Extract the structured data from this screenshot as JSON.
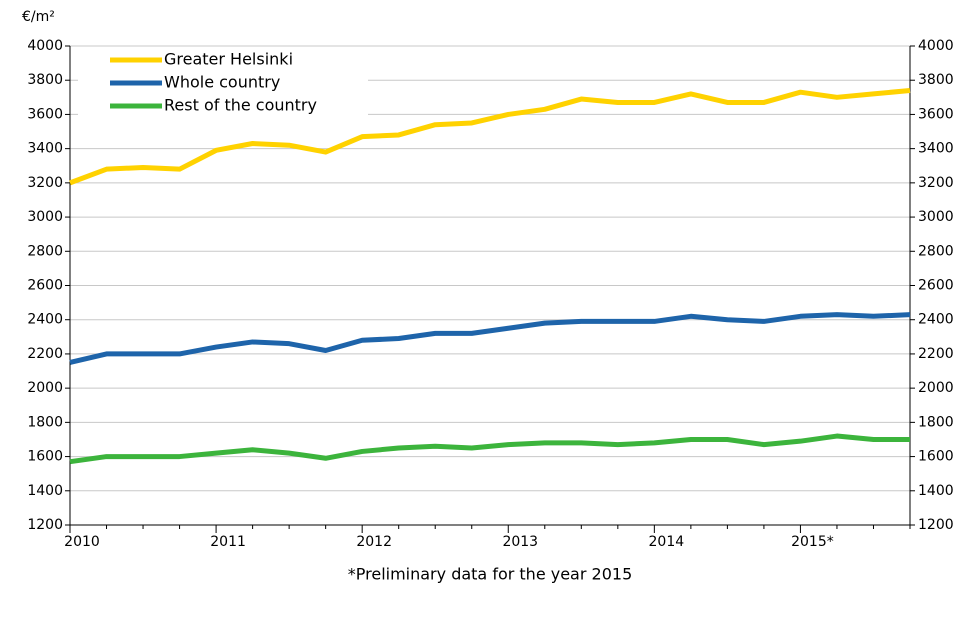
{
  "chart_data": {
    "type": "line",
    "unit_label": "€/m²",
    "footnote": "*Preliminary data for the year 2015",
    "categories": [
      "2010",
      null,
      null,
      null,
      "2011",
      null,
      null,
      null,
      "2012",
      null,
      null,
      null,
      "2013",
      null,
      null,
      null,
      "2014",
      null,
      null,
      null,
      "2015*",
      null,
      null,
      null
    ],
    "series": [
      {
        "name": "Greater Helsinki",
        "color": "#ffd200",
        "values": [
          3200,
          3280,
          3290,
          3280,
          3390,
          3430,
          3420,
          3380,
          3470,
          3480,
          3540,
          3550,
          3600,
          3630,
          3690,
          3670,
          3670,
          3720,
          3670,
          3670,
          3730,
          3700,
          3720,
          3740
        ]
      },
      {
        "name": "Whole country",
        "color": "#1e64aa",
        "values": [
          2150,
          2200,
          2200,
          2200,
          2240,
          2270,
          2260,
          2220,
          2280,
          2290,
          2320,
          2320,
          2350,
          2380,
          2390,
          2390,
          2390,
          2420,
          2400,
          2390,
          2420,
          2430,
          2420,
          2430
        ]
      },
      {
        "name": "Rest of the country",
        "color": "#3cb43c",
        "values": [
          1570,
          1600,
          1600,
          1600,
          1620,
          1640,
          1620,
          1590,
          1630,
          1650,
          1660,
          1650,
          1670,
          1680,
          1680,
          1670,
          1680,
          1700,
          1700,
          1670,
          1690,
          1720,
          1700,
          1700
        ]
      }
    ],
    "ylim": [
      1200,
      4000
    ],
    "yticks": [
      1200,
      1400,
      1600,
      1800,
      2000,
      2200,
      2400,
      2600,
      2800,
      3000,
      3200,
      3400,
      3600,
      3800,
      4000
    ],
    "y2lim": [
      1200,
      4000
    ],
    "y2ticks": [
      1200,
      1400,
      1600,
      1800,
      2000,
      2200,
      2400,
      2600,
      2800,
      3000,
      3200,
      3400,
      3600,
      3800,
      4000
    ],
    "grid": true,
    "legend": "top-left"
  }
}
